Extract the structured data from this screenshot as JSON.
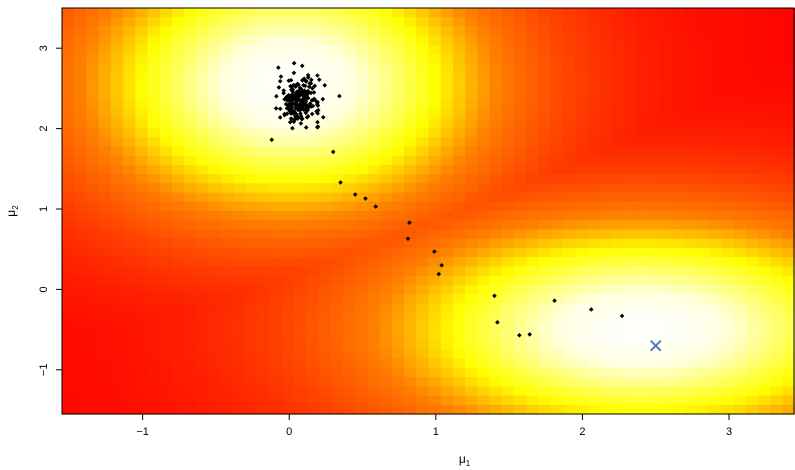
{
  "chart_data": {
    "type": "scatter",
    "title": "",
    "xlabel": "μ",
    "xlabel_sub": "1",
    "ylabel": "μ",
    "ylabel_sub": "2",
    "xlim": [
      -1.55,
      3.45
    ],
    "ylim": [
      -1.55,
      3.5
    ],
    "xticks": [
      -1,
      0,
      1,
      2,
      3
    ],
    "xtick_labels": [
      "−1",
      "0",
      "1",
      "2",
      "3"
    ],
    "yticks": [
      -1,
      0,
      1,
      2,
      3
    ],
    "ytick_labels": [
      "−1",
      "0",
      "1",
      "2",
      "3"
    ],
    "background": {
      "type": "heatmap",
      "palette": [
        "#ff0000",
        "#ff8000",
        "#ffff00",
        "#ffffe0",
        "#ffffff"
      ],
      "minima": [
        {
          "x": 0.0,
          "y": 2.55
        },
        {
          "x": 2.4,
          "y": -0.5
        }
      ]
    },
    "cluster": {
      "center": [
        0.07,
        2.35
      ],
      "spread": [
        0.07,
        0.14
      ],
      "count": 230
    },
    "path_points": [
      {
        "x": 0.3,
        "y": 1.71
      },
      {
        "x": 0.35,
        "y": 1.33
      },
      {
        "x": 0.45,
        "y": 1.18
      },
      {
        "x": 0.52,
        "y": 1.13
      },
      {
        "x": 0.59,
        "y": 1.03
      },
      {
        "x": 0.82,
        "y": 0.83
      },
      {
        "x": 0.81,
        "y": 0.63
      },
      {
        "x": 0.99,
        "y": 0.47
      },
      {
        "x": 1.04,
        "y": 0.3
      },
      {
        "x": 1.02,
        "y": 0.19
      },
      {
        "x": 1.4,
        "y": -0.08
      },
      {
        "x": 1.42,
        "y": -0.41
      },
      {
        "x": 1.57,
        "y": -0.57
      },
      {
        "x": 1.64,
        "y": -0.56
      },
      {
        "x": 1.81,
        "y": -0.14
      },
      {
        "x": 2.06,
        "y": -0.25
      },
      {
        "x": 2.27,
        "y": -0.33
      }
    ],
    "marker": {
      "x": 2.5,
      "y": -0.7,
      "symbol": "x",
      "color": "#4a7fb5"
    },
    "point_color": "#000000"
  }
}
